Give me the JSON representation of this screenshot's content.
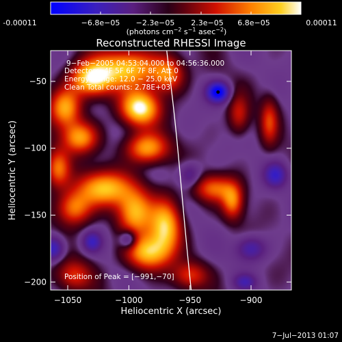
{
  "chart_data": {
    "type": "heatmap",
    "title": "Reconstructed RHESSI Image",
    "xlabel": "Heliocentric X (arcsec)",
    "ylabel": "Heliocentric Y (arcsec)",
    "xlim": [
      -1064,
      -867
    ],
    "ylim": [
      -206,
      -27
    ],
    "x_ticks": [
      -1050,
      -1000,
      -950,
      -900
    ],
    "x_tick_labels": [
      "−1050",
      "−1000",
      "−950",
      "−900"
    ],
    "y_ticks": [
      -50,
      -100,
      -150,
      -200
    ],
    "y_tick_labels": [
      "−50",
      "−100",
      "−150",
      "−200"
    ],
    "colorbar": {
      "min": -0.00011,
      "max": 0.00011,
      "tick_labels": [
        "-0.00011",
        "−6.8e−05",
        "−2.3e−05",
        "2.3e−05",
        "6.8e−05",
        "0.00011"
      ],
      "unit_main": "(photons cm",
      "unit_sup1": "−2",
      "unit_mid": " s",
      "unit_sup2": "−1",
      "unit_end": " asec",
      "unit_sup3": "−2",
      "unit_close": ")"
    },
    "annotations": [
      "9−Feb−2005 04:53:04.000 to 04:56:36.000",
      "Detectors: 4F 5F 6F 7F 8F, Att 0",
      "Energy Range: 12.0 − 25.0 keV",
      "Clean    Total counts: 2.78E+03"
    ],
    "peak_label": "Position of Peak = [−991,−70]",
    "peak": [
      -991,
      -70
    ],
    "limb_curve": [
      [
        -969,
        -27
      ],
      [
        -962,
        -80
      ],
      [
        -957,
        -130
      ],
      [
        -953,
        -170
      ],
      [
        -949,
        -206
      ]
    ],
    "marker_point": [
      -927,
      -58
    ],
    "blobs": [
      {
        "x": -1030,
        "y": -48,
        "sx": 12,
        "sy": 9,
        "a": 0.95
      },
      {
        "x": -1052,
        "y": -70,
        "sx": 9,
        "sy": 10,
        "a": 0.75
      },
      {
        "x": -1000,
        "y": -40,
        "sx": 18,
        "sy": 10,
        "a": 0.8
      },
      {
        "x": -991,
        "y": -70,
        "sx": 11,
        "sy": 9,
        "a": 1.0
      },
      {
        "x": -968,
        "y": -45,
        "sx": 9,
        "sy": 9,
        "a": 0.6
      },
      {
        "x": -1040,
        "y": -92,
        "sx": 10,
        "sy": 8,
        "a": 0.7
      },
      {
        "x": -985,
        "y": -100,
        "sx": 12,
        "sy": 8,
        "a": 0.75
      },
      {
        "x": -1058,
        "y": -115,
        "sx": 7,
        "sy": 10,
        "a": 0.6
      },
      {
        "x": -1020,
        "y": -130,
        "sx": 16,
        "sy": 9,
        "a": 0.8
      },
      {
        "x": -1045,
        "y": -145,
        "sx": 10,
        "sy": 9,
        "a": 0.65
      },
      {
        "x": -995,
        "y": -148,
        "sx": 10,
        "sy": 12,
        "a": 0.75
      },
      {
        "x": -970,
        "y": -158,
        "sx": 9,
        "sy": 14,
        "a": 0.85
      },
      {
        "x": -985,
        "y": -178,
        "sx": 12,
        "sy": 9,
        "a": 0.8
      },
      {
        "x": -1045,
        "y": -195,
        "sx": 10,
        "sy": 8,
        "a": 0.45
      },
      {
        "x": -930,
        "y": -130,
        "sx": 12,
        "sy": 7,
        "a": 0.55
      },
      {
        "x": -915,
        "y": -140,
        "sx": 6,
        "sy": 9,
        "a": 0.6
      },
      {
        "x": -950,
        "y": -195,
        "sx": 10,
        "sy": 7,
        "a": 0.45
      },
      {
        "x": -885,
        "y": -80,
        "sx": 5,
        "sy": 12,
        "a": 0.45
      },
      {
        "x": -910,
        "y": -75,
        "sx": 6,
        "sy": 10,
        "a": 0.4
      },
      {
        "x": -927,
        "y": -58,
        "sx": 6,
        "sy": 5,
        "a": -1.0
      },
      {
        "x": -880,
        "y": -120,
        "sx": 6,
        "sy": 6,
        "a": -0.55
      },
      {
        "x": -1000,
        "y": -168,
        "sx": 5,
        "sy": 5,
        "a": -0.5
      },
      {
        "x": -1062,
        "y": -175,
        "sx": 6,
        "sy": 6,
        "a": -0.6
      },
      {
        "x": -900,
        "y": -175,
        "sx": 8,
        "sy": 6,
        "a": -0.45
      },
      {
        "x": -1030,
        "y": -170,
        "sx": 5,
        "sy": 5,
        "a": -0.5
      },
      {
        "x": -905,
        "y": -200,
        "sx": 6,
        "sy": 4,
        "a": -0.4
      },
      {
        "x": -950,
        "y": -120,
        "sx": 6,
        "sy": 6,
        "a": -0.35
      }
    ]
  },
  "footer": {
    "timestamp": "7−Jul−2013 01:07"
  }
}
